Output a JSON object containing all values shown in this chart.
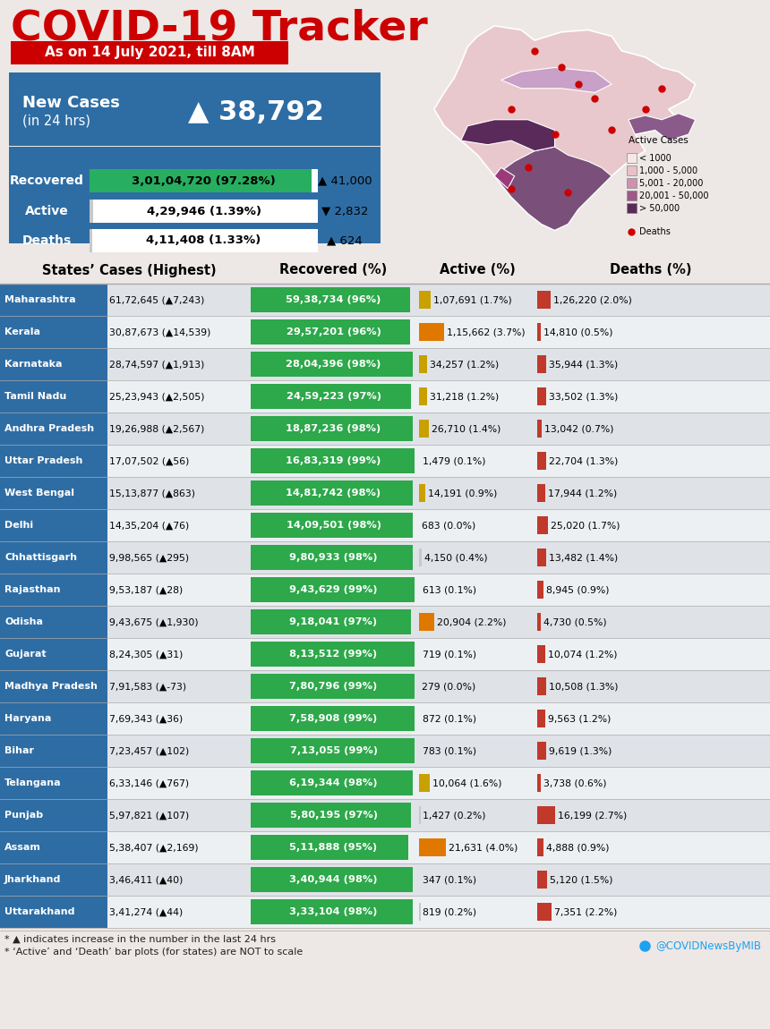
{
  "title": "COVID-19 Tracker",
  "subtitle": "As on 14 July 2021, till 8AM",
  "new_cases_value": "▲ 38,792",
  "summary": [
    {
      "label": "Recovered",
      "value": "3,01,04,720 (97.28%)",
      "change": "▲ 41,000",
      "bar_color": "#27ae60",
      "bar_pct": 0.9728
    },
    {
      "label": "Active",
      "value": "4,29,946 (1.39%)",
      "change": "▼ 2,832",
      "bar_color": "#c8c8c8",
      "bar_pct": 0.0139
    },
    {
      "label": "Deaths",
      "value": "4,11,408 (1.33%)",
      "change": "▲ 624",
      "bar_color": "#c8c8c8",
      "bar_pct": 0.0133
    }
  ],
  "col_headers": [
    "States’ Cases (Highest)",
    "Recovered (%)",
    "Active (%)",
    "Deaths (%)"
  ],
  "states": [
    {
      "name": "Maharashtra",
      "cases": "61,72,645 (▲7,243)",
      "recovered": "59,38,734 (96%)",
      "rec_pct": 0.96,
      "active": "1,07,691 (1.7%)",
      "act_pct": 1.7,
      "act_color": "#c8a000",
      "deaths": "1,26,220 (2.0%)",
      "dth_pct": 2.0
    },
    {
      "name": "Kerala",
      "cases": "30,87,673 (▲14,539)",
      "recovered": "29,57,201 (96%)",
      "rec_pct": 0.96,
      "active": "1,15,662 (3.7%)",
      "act_pct": 3.7,
      "act_color": "#e07800",
      "deaths": "14,810 (0.5%)",
      "dth_pct": 0.5
    },
    {
      "name": "Karnataka",
      "cases": "28,74,597 (▲1,913)",
      "recovered": "28,04,396 (98%)",
      "rec_pct": 0.98,
      "active": "34,257 (1.2%)",
      "act_pct": 1.2,
      "act_color": "#c8a000",
      "deaths": "35,944 (1.3%)",
      "dth_pct": 1.3
    },
    {
      "name": "Tamil Nadu",
      "cases": "25,23,943 (▲2,505)",
      "recovered": "24,59,223 (97%)",
      "rec_pct": 0.97,
      "active": "31,218 (1.2%)",
      "act_pct": 1.2,
      "act_color": "#c8a000",
      "deaths": "33,502 (1.3%)",
      "dth_pct": 1.3
    },
    {
      "name": "Andhra Pradesh",
      "cases": "19,26,988 (▲2,567)",
      "recovered": "18,87,236 (98%)",
      "rec_pct": 0.98,
      "active": "26,710 (1.4%)",
      "act_pct": 1.4,
      "act_color": "#c8a000",
      "deaths": "13,042 (0.7%)",
      "dth_pct": 0.7
    },
    {
      "name": "Uttar Pradesh",
      "cases": "17,07,502 (▲56)",
      "recovered": "16,83,319 (99%)",
      "rec_pct": 0.99,
      "active": "1,479 (0.1%)",
      "act_pct": 0.1,
      "act_color": "#c8c8c8",
      "deaths": "22,704 (1.3%)",
      "dth_pct": 1.3
    },
    {
      "name": "West Bengal",
      "cases": "15,13,877 (▲863)",
      "recovered": "14,81,742 (98%)",
      "rec_pct": 0.98,
      "active": "14,191 (0.9%)",
      "act_pct": 0.9,
      "act_color": "#c8a000",
      "deaths": "17,944 (1.2%)",
      "dth_pct": 1.2
    },
    {
      "name": "Delhi",
      "cases": "14,35,204 (▲76)",
      "recovered": "14,09,501 (98%)",
      "rec_pct": 0.98,
      "active": "683 (0.0%)",
      "act_pct": 0.0,
      "act_color": "#c8c8c8",
      "deaths": "25,020 (1.7%)",
      "dth_pct": 1.7
    },
    {
      "name": "Chhattisgarh",
      "cases": "9,98,565 (▲295)",
      "recovered": "9,80,933 (98%)",
      "rec_pct": 0.98,
      "active": "4,150 (0.4%)",
      "act_pct": 0.4,
      "act_color": "#c8c8c8",
      "deaths": "13,482 (1.4%)",
      "dth_pct": 1.4
    },
    {
      "name": "Rajasthan",
      "cases": "9,53,187 (▲28)",
      "recovered": "9,43,629 (99%)",
      "rec_pct": 0.99,
      "active": "613 (0.1%)",
      "act_pct": 0.1,
      "act_color": "#c8c8c8",
      "deaths": "8,945 (0.9%)",
      "dth_pct": 0.9
    },
    {
      "name": "Odisha",
      "cases": "9,43,675 (▲1,930)",
      "recovered": "9,18,041 (97%)",
      "rec_pct": 0.97,
      "active": "20,904 (2.2%)",
      "act_pct": 2.2,
      "act_color": "#e07800",
      "deaths": "4,730 (0.5%)",
      "dth_pct": 0.5
    },
    {
      "name": "Gujarat",
      "cases": "8,24,305 (▲31)",
      "recovered": "8,13,512 (99%)",
      "rec_pct": 0.99,
      "active": "719 (0.1%)",
      "act_pct": 0.1,
      "act_color": "#c8c8c8",
      "deaths": "10,074 (1.2%)",
      "dth_pct": 1.2
    },
    {
      "name": "Madhya Pradesh",
      "cases": "7,91,583 (▲-73)",
      "recovered": "7,80,796 (99%)",
      "rec_pct": 0.99,
      "active": "279 (0.0%)",
      "act_pct": 0.0,
      "act_color": "#c8c8c8",
      "deaths": "10,508 (1.3%)",
      "dth_pct": 1.3
    },
    {
      "name": "Haryana",
      "cases": "7,69,343 (▲36)",
      "recovered": "7,58,908 (99%)",
      "rec_pct": 0.99,
      "active": "872 (0.1%)",
      "act_pct": 0.1,
      "act_color": "#c8c8c8",
      "deaths": "9,563 (1.2%)",
      "dth_pct": 1.2
    },
    {
      "name": "Bihar",
      "cases": "7,23,457 (▲102)",
      "recovered": "7,13,055 (99%)",
      "rec_pct": 0.99,
      "active": "783 (0.1%)",
      "act_pct": 0.1,
      "act_color": "#c8c8c8",
      "deaths": "9,619 (1.3%)",
      "dth_pct": 1.3
    },
    {
      "name": "Telangana",
      "cases": "6,33,146 (▲767)",
      "recovered": "6,19,344 (98%)",
      "rec_pct": 0.98,
      "active": "10,064 (1.6%)",
      "act_pct": 1.6,
      "act_color": "#c8a000",
      "deaths": "3,738 (0.6%)",
      "dth_pct": 0.6
    },
    {
      "name": "Punjab",
      "cases": "5,97,821 (▲107)",
      "recovered": "5,80,195 (97%)",
      "rec_pct": 0.97,
      "active": "1,427 (0.2%)",
      "act_pct": 0.2,
      "act_color": "#c8c8c8",
      "deaths": "16,199 (2.7%)",
      "dth_pct": 2.7
    },
    {
      "name": "Assam",
      "cases": "5,38,407 (▲2,169)",
      "recovered": "5,11,888 (95%)",
      "rec_pct": 0.95,
      "active": "21,631 (4.0%)",
      "act_pct": 4.0,
      "act_color": "#e07800",
      "deaths": "4,888 (0.9%)",
      "dth_pct": 0.9
    },
    {
      "name": "Jharkhand",
      "cases": "3,46,411 (▲40)",
      "recovered": "3,40,944 (98%)",
      "rec_pct": 0.98,
      "active": "347 (0.1%)",
      "act_pct": 0.1,
      "act_color": "#c8c8c8",
      "deaths": "5,120 (1.5%)",
      "dth_pct": 1.5
    },
    {
      "name": "Uttarakhand",
      "cases": "3,41,274 (▲44)",
      "recovered": "3,33,104 (98%)",
      "rec_pct": 0.98,
      "active": "819 (0.2%)",
      "act_pct": 0.2,
      "act_color": "#c8c8c8",
      "deaths": "7,351 (2.2%)",
      "dth_pct": 2.2
    }
  ],
  "bg_color": "#ede8e5",
  "header_bg": "#2e6da4",
  "title_color": "#cc0000",
  "subtitle_bg": "#cc0000",
  "green_color": "#2da84a",
  "red_bar_color": "#c0392b",
  "footnote1": "* ▲ indicates increase in the number in the last 24 hrs",
  "footnote2": "* ‘Active’ and ‘Death’ bar plots (for states) are NOT to scale",
  "twitter": "@COVIDNewsByMIB"
}
